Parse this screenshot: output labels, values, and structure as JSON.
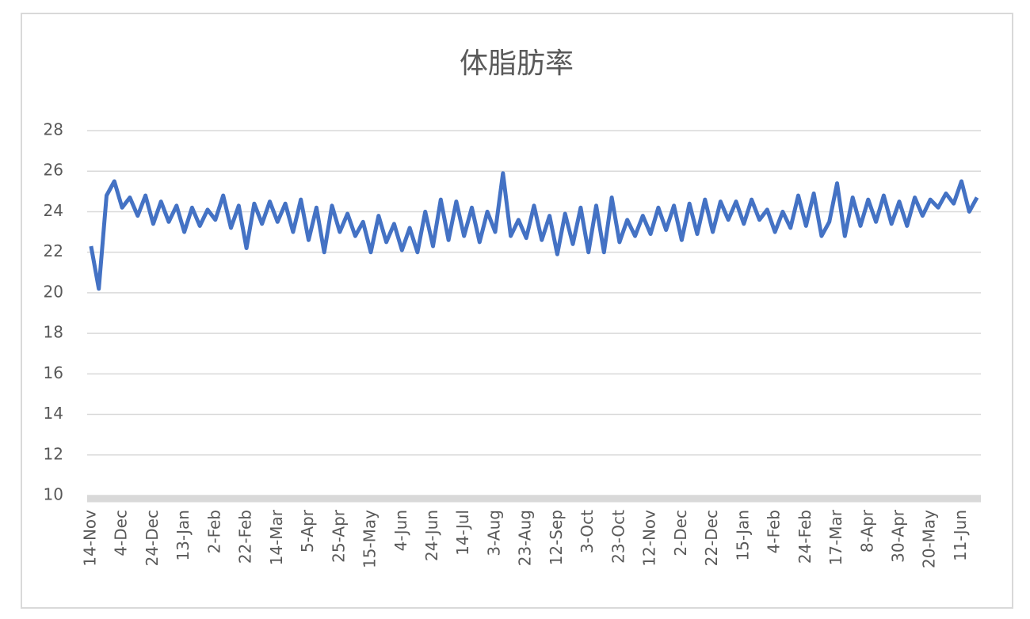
{
  "chart_data": {
    "type": "line",
    "title": "体脂肪率",
    "categories": [
      "14-Nov",
      null,
      null,
      null,
      "4-Dec",
      null,
      null,
      null,
      "24-Dec",
      null,
      null,
      null,
      "13-Jan",
      null,
      null,
      null,
      "2-Feb",
      null,
      null,
      null,
      "22-Feb",
      null,
      null,
      null,
      "14-Mar",
      null,
      null,
      null,
      "5-Apr",
      null,
      null,
      null,
      "25-Apr",
      null,
      null,
      null,
      "15-May",
      null,
      null,
      null,
      "4-Jun",
      null,
      null,
      null,
      "24-Jun",
      null,
      null,
      null,
      "14-Jul",
      null,
      null,
      null,
      "3-Aug",
      null,
      null,
      null,
      "23-Aug",
      null,
      null,
      null,
      "12-Sep",
      null,
      null,
      null,
      "3-Oct",
      null,
      null,
      null,
      "23-Oct",
      null,
      null,
      null,
      "12-Nov",
      null,
      null,
      null,
      "2-Dec",
      null,
      null,
      null,
      "22-Dec",
      null,
      null,
      null,
      "15-Jan",
      null,
      null,
      null,
      "4-Feb",
      null,
      null,
      null,
      "24-Feb",
      null,
      null,
      null,
      "17-Mar",
      null,
      null,
      null,
      "8-Apr",
      null,
      null,
      null,
      "30-Apr",
      null,
      null,
      null,
      "20-May",
      null,
      null,
      null,
      "11-Jun",
      null,
      null
    ],
    "values": [
      22.3,
      20.2,
      24.8,
      25.5,
      24.2,
      24.7,
      23.8,
      24.8,
      23.4,
      24.5,
      23.5,
      24.3,
      23.0,
      24.2,
      23.3,
      24.1,
      23.6,
      24.8,
      23.2,
      24.3,
      22.2,
      24.4,
      23.4,
      24.5,
      23.5,
      24.4,
      23.0,
      24.6,
      22.6,
      24.2,
      22.0,
      24.3,
      23.0,
      23.9,
      22.8,
      23.5,
      22.0,
      23.8,
      22.5,
      23.4,
      22.1,
      23.2,
      22.0,
      24.0,
      22.3,
      24.6,
      22.6,
      24.5,
      22.8,
      24.2,
      22.5,
      24.0,
      23.0,
      25.9,
      22.8,
      23.6,
      22.7,
      24.3,
      22.6,
      23.8,
      21.9,
      23.9,
      22.4,
      24.2,
      22.0,
      24.3,
      22.0,
      24.7,
      22.5,
      23.6,
      22.8,
      23.8,
      22.9,
      24.2,
      23.1,
      24.3,
      22.6,
      24.4,
      22.9,
      24.6,
      23.0,
      24.5,
      23.6,
      24.5,
      23.4,
      24.6,
      23.6,
      24.1,
      23.0,
      24.0,
      23.2,
      24.8,
      23.3,
      24.9,
      22.8,
      23.5,
      25.4,
      22.8,
      24.7,
      23.3,
      24.6,
      23.5,
      24.8,
      23.4,
      24.5,
      23.3,
      24.7,
      23.8,
      24.6,
      24.2,
      24.9,
      24.4,
      25.5,
      24.0,
      24.7
    ],
    "color": "#4472c4",
    "ylim": [
      10,
      28
    ],
    "yticks": [
      10,
      12,
      14,
      16,
      18,
      20,
      22,
      24,
      26,
      28
    ],
    "grid": true
  }
}
